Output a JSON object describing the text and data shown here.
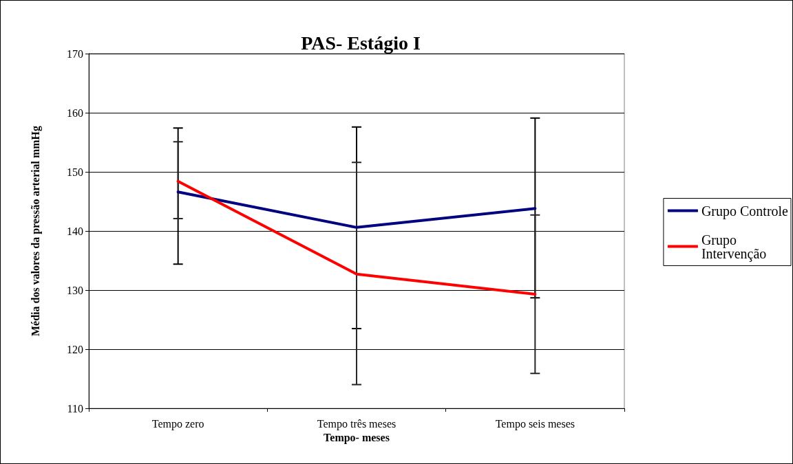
{
  "chart_data": {
    "type": "line",
    "title": "PAS- Estágio I",
    "xlabel": "Tempo- meses",
    "ylabel": "Média dos valores da pressão arterial mmHg",
    "categories": [
      "Tempo zero",
      "Tempo três meses",
      "Tempo seis meses"
    ],
    "series": [
      {
        "name": "Grupo Controle",
        "color": "#000080",
        "values": [
          146.6,
          140.6,
          143.8
        ],
        "errors": [
          [
            134.4,
            157.4
          ],
          [
            123.5,
            157.6
          ],
          [
            128.7,
            159.1
          ]
        ]
      },
      {
        "name": "Grupo Intervenção",
        "color": "#ff0000",
        "values": [
          148.4,
          132.7,
          129.3
        ],
        "errors": [
          [
            142.1,
            155.1
          ],
          [
            114.0,
            151.6
          ],
          [
            115.9,
            142.7
          ]
        ]
      }
    ],
    "ylim": [
      110,
      170
    ],
    "yticks": [
      110,
      120,
      130,
      140,
      150,
      160,
      170
    ],
    "grid": "y",
    "legend": "right",
    "marker": "none",
    "line_style": "solid"
  }
}
